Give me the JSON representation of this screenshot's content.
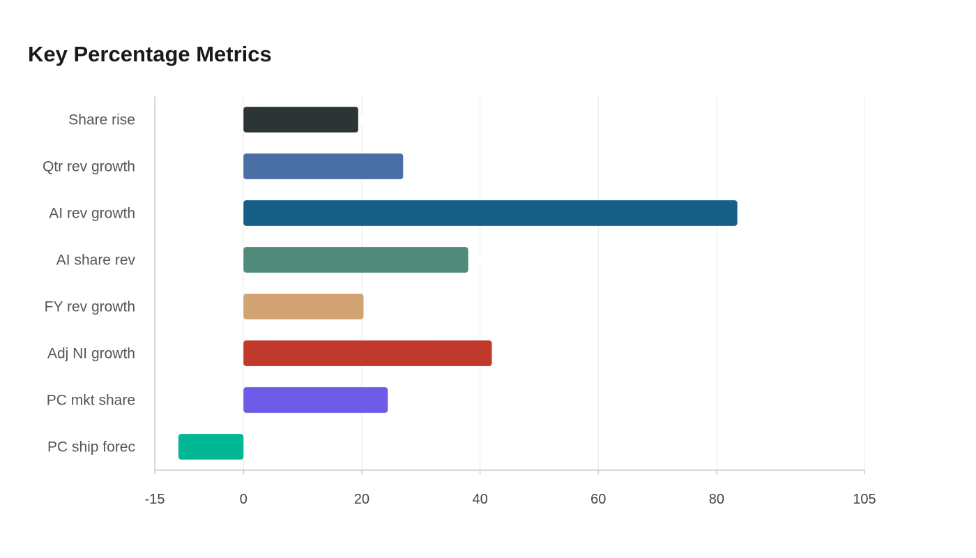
{
  "chart_data": {
    "type": "bar",
    "orientation": "horizontal",
    "title": "Key Percentage Metrics",
    "xlabel": "",
    "ylabel": "",
    "categories": [
      "Share rise",
      "Qtr rev growth",
      "AI rev growth",
      "AI share rev",
      "FY rev growth",
      "Adj NI growth",
      "PC mkt share",
      "PC ship forec"
    ],
    "values": [
      19.4,
      27,
      83.5,
      38,
      20.3,
      42,
      24.4,
      -11
    ],
    "colors": [
      "#2d3436",
      "#4a6fa5",
      "#166088",
      "#4f8a7b",
      "#d4a373",
      "#c0392b",
      "#6c5ce7",
      "#00b894"
    ],
    "xlim": [
      -15,
      105
    ],
    "xticks": [
      -15,
      0,
      20,
      40,
      60,
      80,
      105
    ],
    "grid": "vertical",
    "legend": "none"
  }
}
